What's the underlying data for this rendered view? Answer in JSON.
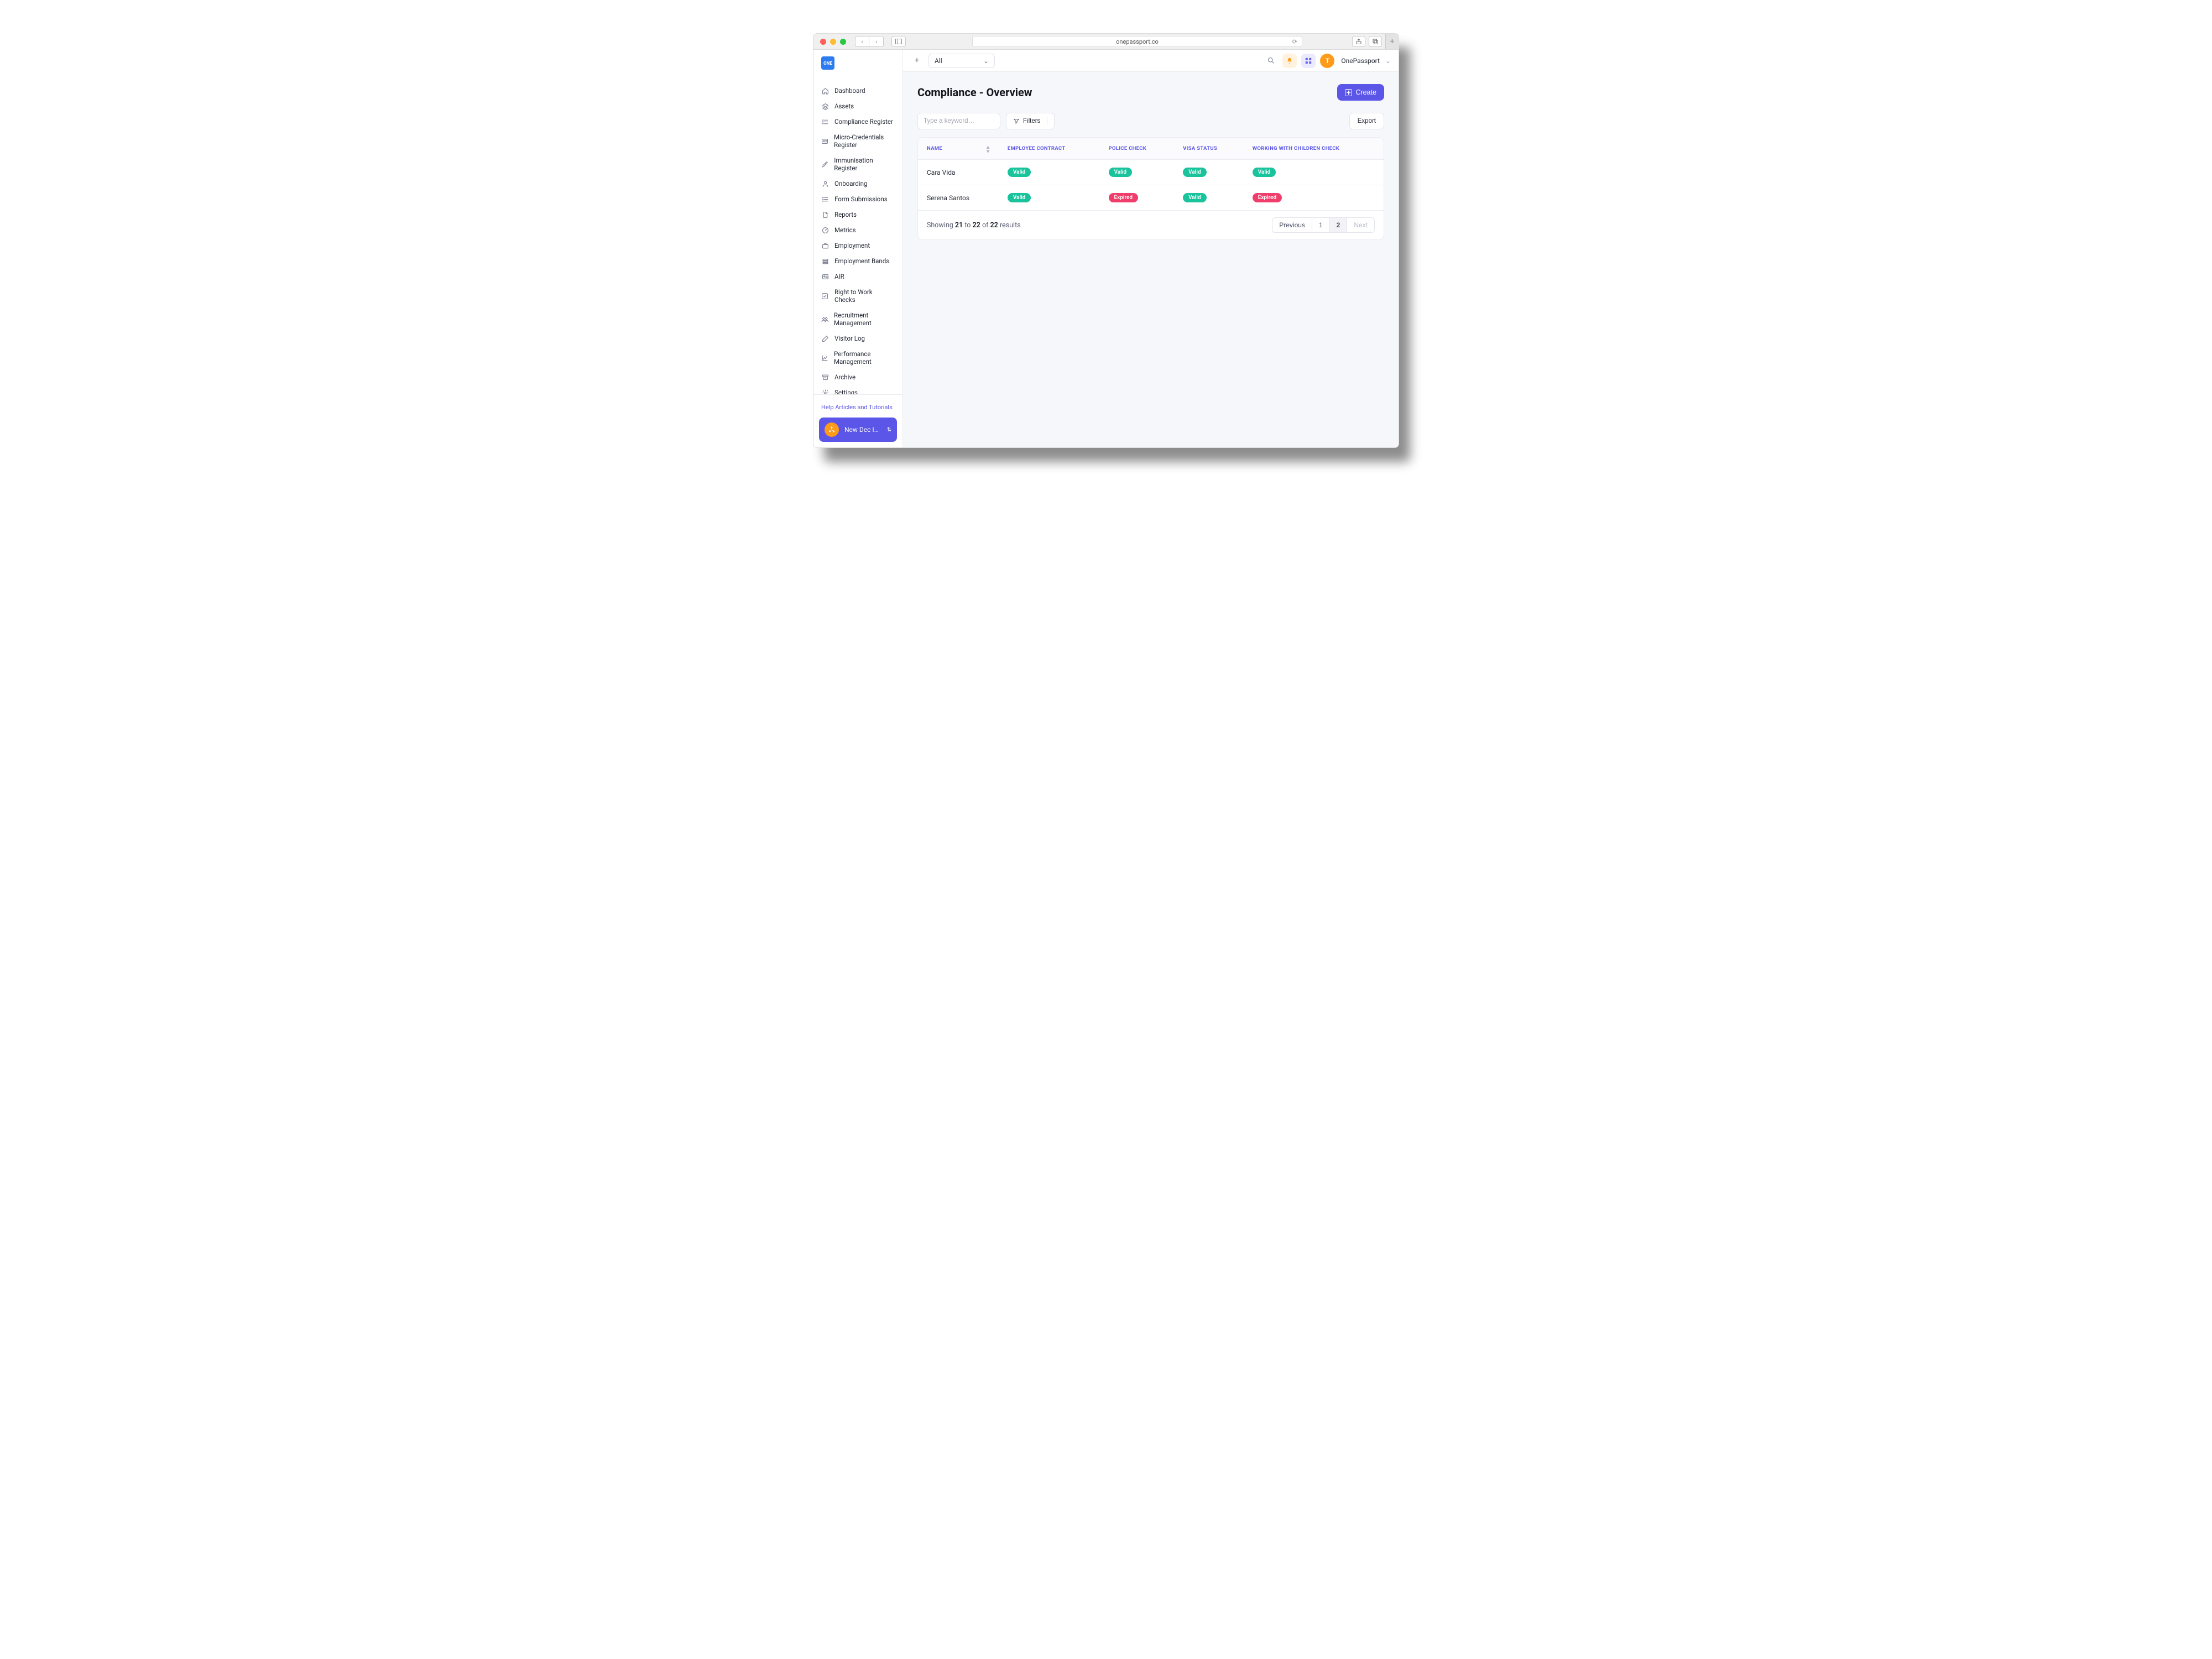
{
  "browser": {
    "url": "onepassport.co"
  },
  "brand": "ONE",
  "topbar": {
    "select_label": "All",
    "user_initial": "T",
    "user_name": "OnePassport"
  },
  "sidebar": {
    "items": [
      {
        "label": "Dashboard",
        "icon": "home"
      },
      {
        "label": "Assets",
        "icon": "layers"
      },
      {
        "label": "Compliance Register",
        "icon": "list"
      },
      {
        "label": "Micro-Credentials Register",
        "icon": "id"
      },
      {
        "label": "Immunisation Register",
        "icon": "syringe"
      },
      {
        "label": "Onboarding",
        "icon": "user"
      },
      {
        "label": "Form Submissions",
        "icon": "list"
      },
      {
        "label": "Reports",
        "icon": "doc"
      },
      {
        "label": "Metrics",
        "icon": "gauge"
      },
      {
        "label": "Employment",
        "icon": "briefcase"
      },
      {
        "label": "Employment Bands",
        "icon": "stack"
      },
      {
        "label": "AIR",
        "icon": "id"
      },
      {
        "label": "Right to Work Checks",
        "icon": "check"
      },
      {
        "label": "Recruitment Management",
        "icon": "users"
      },
      {
        "label": "Visitor Log",
        "icon": "pen"
      },
      {
        "label": "Performance Management",
        "icon": "chart"
      },
      {
        "label": "Archive",
        "icon": "archive"
      },
      {
        "label": "Settings",
        "icon": "gear"
      }
    ],
    "help_link": "Help Articles and Tutorials",
    "industry_button": "New Dec Indus…"
  },
  "page": {
    "title": "Compliance - Overview",
    "create_label": "Create",
    "search_placeholder": "Type a keyword…",
    "filters_label": "Filters",
    "export_label": "Export"
  },
  "table": {
    "columns": [
      "NAME",
      "EMPLOYEE CONTRACT",
      "POLICE CHECK",
      "VISA STATUS",
      "WORKING WITH CHILDREN CHECK"
    ],
    "rows": [
      {
        "name": "Cara Vida",
        "cells": [
          "Valid",
          "Valid",
          "Valid",
          "Valid"
        ]
      },
      {
        "name": "Serena Santos",
        "cells": [
          "Valid",
          "Expired",
          "Valid",
          "Expired"
        ]
      }
    ],
    "status_colors": {
      "Valid": "#19c39c",
      "Expired": "#ef3e6b"
    },
    "footer": {
      "from": "21",
      "to": "22",
      "total": "22",
      "text_of": "of",
      "text_to": "to",
      "text_showing": "Showing",
      "text_results": "results"
    },
    "pager": {
      "prev": "Previous",
      "next": "Next",
      "pages": [
        "1",
        "2"
      ],
      "active": "2"
    }
  },
  "colors": {
    "primary": "#5b56e8",
    "accent_orange": "#ff9b1a",
    "bg": "#f6f7fb",
    "border": "#ebecf2",
    "header_link": "#5b56e8"
  }
}
